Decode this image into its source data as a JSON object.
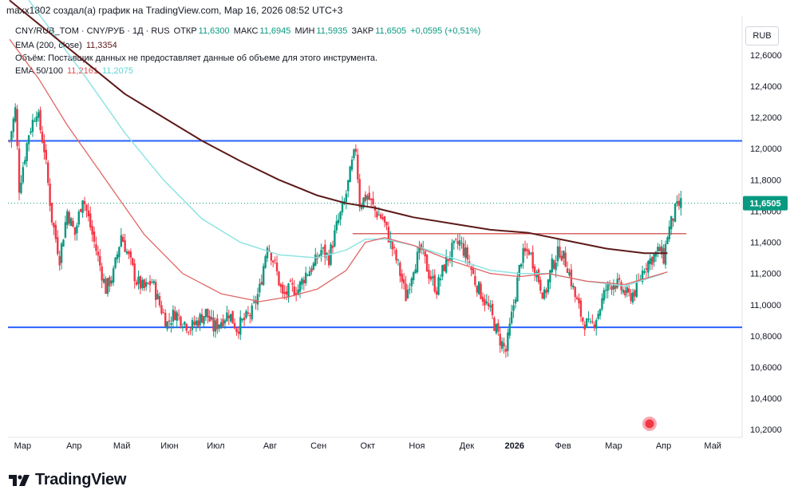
{
  "header": {
    "credit": "maxx1802 создал(а) график на TradingView.com, Мар 16, 2026 08:52 UTC+3"
  },
  "legend": {
    "symbol": "CNY/RUB_TOM · CNY/РУБ · 1Д · RUS",
    "open_label": "ОТКР",
    "open": "11,6300",
    "high_label": "МАКС",
    "high": "11,6945",
    "low_label": "МИН",
    "low": "11,5935",
    "close_label": "ЗАКР",
    "close": "11,6505",
    "change": "+0,0595 (+0,51%)",
    "ema200_label": "EMA (200, close)",
    "ema200_value": "11,3354",
    "volume_note": "Объём: Поставщик данных не предоставляет данные об объеме для этого инструмента.",
    "ema_pair_label": "EMA 50/100",
    "ema50_value": "11,2161",
    "ema100_value": "11,2075"
  },
  "currency_button": "RUB",
  "colors": {
    "up": "#089981",
    "down": "#f23645",
    "ema200": "#5d1a1a",
    "ema50": "#e06666",
    "ema100": "#8fe3e3",
    "level": "#2962ff",
    "resistance": "#cc3333"
  },
  "chart_data": {
    "type": "candlestick",
    "title": "CNY/RUB_TOM · CNY/РУБ · 1Д · RUS",
    "ylim": [
      10.15,
      12.85
    ],
    "yticks": [
      "12,6000",
      "12,4000",
      "12,2000",
      "12,0000",
      "11,8000",
      "11,6000",
      "11,4000",
      "11,2000",
      "11,0000",
      "10,8000",
      "10,6000",
      "10,4000",
      "10,2000"
    ],
    "ytick_values": [
      12.6,
      12.4,
      12.2,
      12.0,
      11.8,
      11.6,
      11.4,
      11.2,
      11.0,
      10.8,
      10.6,
      10.4,
      10.2
    ],
    "xlabels": [
      "Мар",
      "Апр",
      "Май",
      "Июн",
      "Июл",
      "Авг",
      "Сен",
      "Окт",
      "Ноя",
      "Дек",
      "2026",
      "Фев",
      "Мар",
      "Апр",
      "Май"
    ],
    "bold_xlabel": "2026",
    "last_price": "11,6505",
    "last_price_value": 11.6505,
    "horizontal_levels": [
      {
        "name": "resistance-upper",
        "value": 12.05
      },
      {
        "name": "support-lower",
        "value": 10.855
      }
    ],
    "partial_resistance": 11.455,
    "close_path": [
      [
        0,
        12.05
      ],
      [
        3,
        12.25
      ],
      [
        5,
        11.75
      ],
      [
        10,
        12.1
      ],
      [
        14,
        12.25
      ],
      [
        18,
        12.0
      ],
      [
        22,
        11.55
      ],
      [
        26,
        11.3
      ],
      [
        30,
        11.6
      ],
      [
        34,
        11.45
      ],
      [
        38,
        11.7
      ],
      [
        42,
        11.5
      ],
      [
        46,
        11.3
      ],
      [
        50,
        11.1
      ],
      [
        54,
        11.2
      ],
      [
        58,
        11.45
      ],
      [
        62,
        11.3
      ],
      [
        66,
        11.15
      ],
      [
        70,
        11.1
      ],
      [
        74,
        11.15
      ],
      [
        78,
        11.0
      ],
      [
        82,
        10.88
      ],
      [
        86,
        10.95
      ],
      [
        90,
        10.9
      ],
      [
        94,
        10.85
      ],
      [
        98,
        10.9
      ],
      [
        102,
        10.95
      ],
      [
        106,
        10.85
      ],
      [
        110,
        10.9
      ],
      [
        114,
        10.95
      ],
      [
        118,
        10.85
      ],
      [
        122,
        10.9
      ],
      [
        126,
        10.95
      ],
      [
        130,
        11.1
      ],
      [
        134,
        11.4
      ],
      [
        138,
        11.25
      ],
      [
        142,
        11.05
      ],
      [
        146,
        11.1
      ],
      [
        150,
        11.1
      ],
      [
        154,
        11.2
      ],
      [
        158,
        11.25
      ],
      [
        162,
        11.35
      ],
      [
        166,
        11.3
      ],
      [
        170,
        11.5
      ],
      [
        174,
        11.65
      ],
      [
        178,
        11.9
      ],
      [
        180,
        12.0
      ],
      [
        182,
        11.65
      ],
      [
        186,
        11.7
      ],
      [
        190,
        11.6
      ],
      [
        194,
        11.55
      ],
      [
        198,
        11.4
      ],
      [
        202,
        11.25
      ],
      [
        206,
        11.05
      ],
      [
        210,
        11.25
      ],
      [
        214,
        11.35
      ],
      [
        218,
        11.2
      ],
      [
        222,
        11.1
      ],
      [
        226,
        11.25
      ],
      [
        230,
        11.35
      ],
      [
        234,
        11.4
      ],
      [
        238,
        11.3
      ],
      [
        242,
        11.15
      ],
      [
        246,
        11.05
      ],
      [
        250,
        10.95
      ],
      [
        254,
        10.8
      ],
      [
        258,
        10.7
      ],
      [
        262,
        11.0
      ],
      [
        266,
        11.3
      ],
      [
        270,
        11.35
      ],
      [
        274,
        11.2
      ],
      [
        278,
        11.05
      ],
      [
        282,
        11.25
      ],
      [
        286,
        11.35
      ],
      [
        290,
        11.25
      ],
      [
        294,
        11.05
      ],
      [
        298,
        10.9
      ],
      [
        302,
        10.85
      ],
      [
        306,
        10.95
      ],
      [
        310,
        11.1
      ],
      [
        314,
        11.15
      ],
      [
        318,
        11.1
      ],
      [
        322,
        11.05
      ],
      [
        326,
        11.1
      ],
      [
        330,
        11.25
      ],
      [
        334,
        11.3
      ],
      [
        338,
        11.35
      ],
      [
        340,
        11.3
      ],
      [
        342,
        11.45
      ],
      [
        346,
        11.6
      ],
      [
        349,
        11.65
      ]
    ],
    "ema200": [
      [
        0,
        12.95
      ],
      [
        20,
        12.75
      ],
      [
        40,
        12.55
      ],
      [
        60,
        12.35
      ],
      [
        80,
        12.2
      ],
      [
        100,
        12.05
      ],
      [
        120,
        11.92
      ],
      [
        140,
        11.8
      ],
      [
        160,
        11.7
      ],
      [
        175,
        11.65
      ],
      [
        190,
        11.62
      ],
      [
        210,
        11.56
      ],
      [
        230,
        11.52
      ],
      [
        250,
        11.48
      ],
      [
        270,
        11.46
      ],
      [
        290,
        11.41
      ],
      [
        310,
        11.36
      ],
      [
        330,
        11.33
      ],
      [
        342,
        11.33
      ]
    ],
    "ema100": [
      [
        10,
        12.95
      ],
      [
        25,
        12.7
      ],
      [
        40,
        12.45
      ],
      [
        60,
        12.1
      ],
      [
        80,
        11.8
      ],
      [
        100,
        11.55
      ],
      [
        120,
        11.4
      ],
      [
        140,
        11.32
      ],
      [
        160,
        11.3
      ],
      [
        175,
        11.35
      ],
      [
        185,
        11.42
      ],
      [
        195,
        11.42
      ],
      [
        210,
        11.38
      ],
      [
        230,
        11.3
      ],
      [
        250,
        11.22
      ],
      [
        265,
        11.2
      ],
      [
        280,
        11.2
      ],
      [
        300,
        11.15
      ],
      [
        320,
        11.12
      ],
      [
        340,
        11.2
      ]
    ],
    "ema50": [
      [
        0,
        12.7
      ],
      [
        15,
        12.45
      ],
      [
        30,
        12.15
      ],
      [
        50,
        11.8
      ],
      [
        70,
        11.45
      ],
      [
        90,
        11.2
      ],
      [
        110,
        11.07
      ],
      [
        130,
        11.02
      ],
      [
        145,
        11.05
      ],
      [
        160,
        11.1
      ],
      [
        175,
        11.22
      ],
      [
        185,
        11.4
      ],
      [
        195,
        11.43
      ],
      [
        210,
        11.38
      ],
      [
        230,
        11.28
      ],
      [
        250,
        11.2
      ],
      [
        265,
        11.18
      ],
      [
        280,
        11.2
      ],
      [
        300,
        11.15
      ],
      [
        320,
        11.13
      ],
      [
        342,
        11.21
      ]
    ]
  }
}
